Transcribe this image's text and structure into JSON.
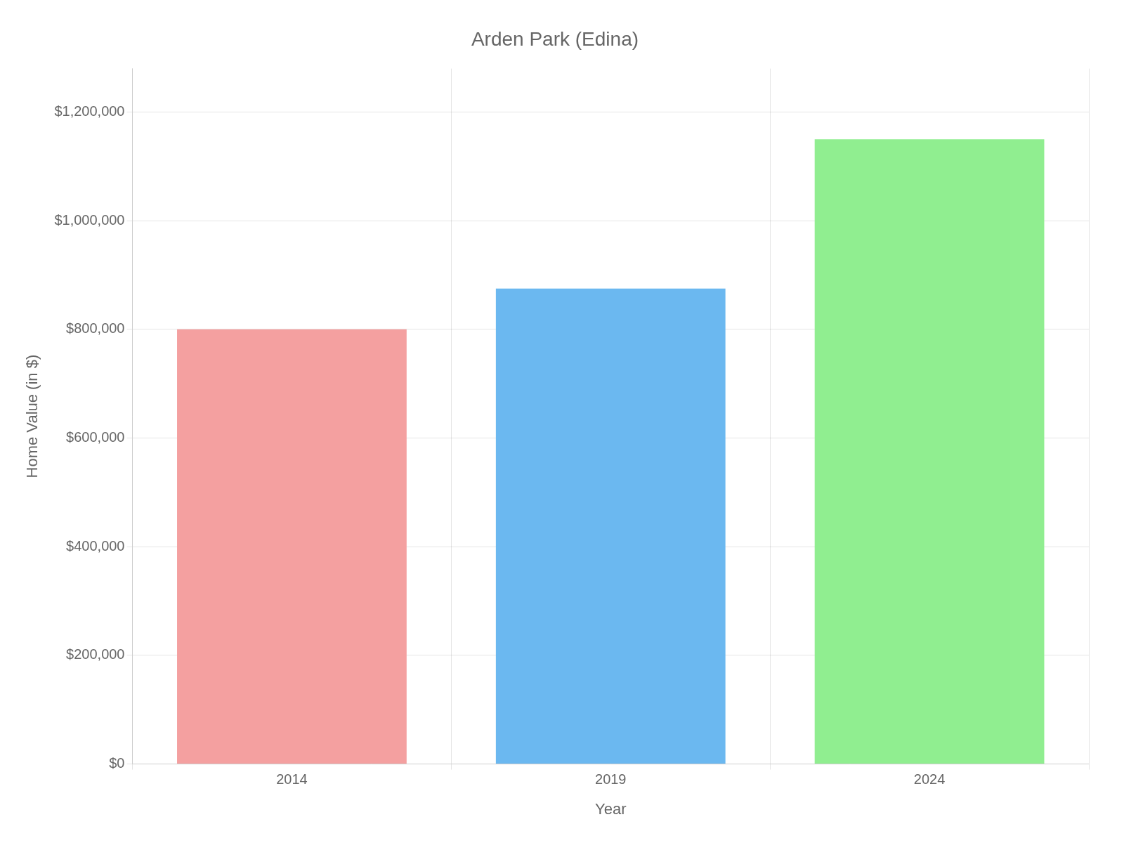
{
  "chart_data": {
    "type": "bar",
    "title": "Arden Park (Edina)",
    "xlabel": "Year",
    "ylabel": "Home Value (in $)",
    "categories": [
      "2014",
      "2019",
      "2024"
    ],
    "values": [
      800000,
      875000,
      1150000
    ],
    "colors": [
      "#F4A0A0",
      "#6BB8F0",
      "#90EE90"
    ],
    "ylim": [
      0,
      1280000
    ],
    "yticks": [
      {
        "value": 0,
        "label": "$0"
      },
      {
        "value": 200000,
        "label": "$200,000"
      },
      {
        "value": 400000,
        "label": "$400,000"
      },
      {
        "value": 600000,
        "label": "$600,000"
      },
      {
        "value": 800000,
        "label": "$800,000"
      },
      {
        "value": 1000000,
        "label": "$1,000,000"
      },
      {
        "value": 1200000,
        "label": "$1,200,000"
      }
    ],
    "grid": true
  }
}
